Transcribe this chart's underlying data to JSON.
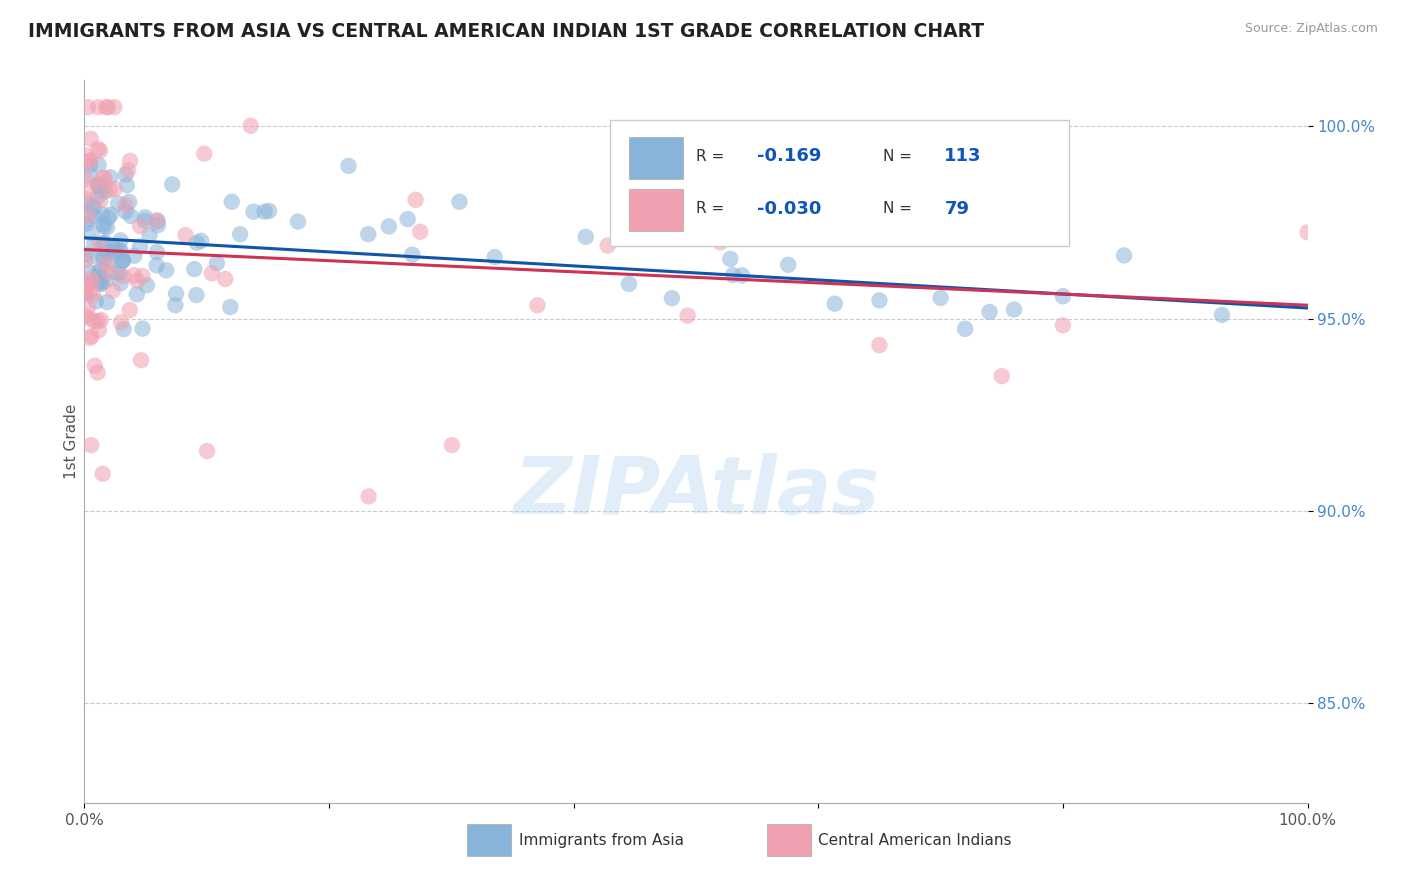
{
  "title": "IMMIGRANTS FROM ASIA VS CENTRAL AMERICAN INDIAN 1ST GRADE CORRELATION CHART",
  "source_text": "Source: ZipAtlas.com",
  "ylabel": "1st Grade",
  "watermark": "ZIPAtlas",
  "xlim": [
    0.0,
    1.0
  ],
  "ylim": [
    0.824,
    1.012
  ],
  "ytick_positions": [
    0.85,
    0.9,
    0.95,
    1.0
  ],
  "ytick_labels": [
    "85.0%",
    "90.0%",
    "95.0%",
    "100.0%"
  ],
  "blue_color": "#89B4D9",
  "pink_color": "#F0A0B0",
  "blue_line_color": "#1155AA",
  "pink_line_color": "#CC3355",
  "legend_label_blue": "Immigrants from Asia",
  "legend_label_pink": "Central American Indians",
  "blue_R_text": "-0.169",
  "blue_N_text": "113",
  "pink_R_text": "-0.030",
  "pink_N_text": "79"
}
